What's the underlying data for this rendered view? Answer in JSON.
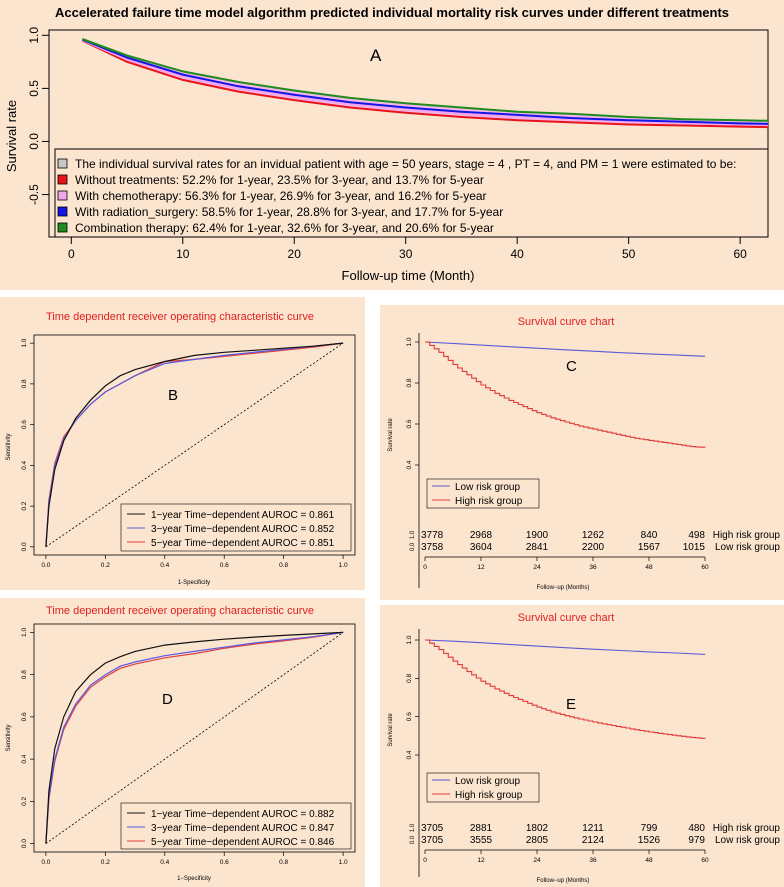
{
  "colors": {
    "background": "#fbe5cf",
    "red": "#e8141c",
    "pink": "#f2a6ee",
    "blue": "#1515e6",
    "green": "#1e8c1e",
    "legend_gray": "#c8c8c8",
    "title_red": "#e02020",
    "roc_black": "#111111",
    "roc_blue": "#5a5ae0",
    "roc_red": "#e04040",
    "low_risk": "#5b5bd6",
    "high_risk": "#e03a3a"
  },
  "chart_data": [
    {
      "id": "A",
      "type": "line",
      "title": "Accelerated failure time model algorithm predicted individual mortality risk curves under different treatments",
      "panel_letter": "A",
      "xlabel": "Follow-up time (Month)",
      "ylabel": "Survival rate",
      "xlim": [
        -2,
        62.5
      ],
      "ylim": [
        -0.9,
        1.05
      ],
      "x_ticks": [
        0,
        10,
        20,
        30,
        40,
        50,
        60
      ],
      "y_ticks": [
        -0.5,
        0.0,
        0.5,
        1.0
      ],
      "y_tick_labels": [
        "-0.5",
        "0.0",
        "0.5",
        "1.0"
      ],
      "legend": {
        "header": "The individual survival rates for an invidual patient with age = 50 years, stage = 4 , PT = 4, and PM = 1 were estimated to be:",
        "entries": [
          "Without treatments:  52.2% for 1-year, 23.5% for 3-year, and 13.7% for 5-year",
          "With chemotherapy:  56.3% for 1-year, 26.9% for 3-year, and 16.2% for 5-year",
          "With radiation_surgery:  58.5% for 1-year, 28.8% for 3-year, and 17.7% for 5-year",
          "Combination therapy:  62.4% for 1-year, 32.6% for 3-year, and 20.6% for 5-year"
        ]
      },
      "series": [
        {
          "name": "Without treatments",
          "color": "#e8141c",
          "x": [
            1,
            5,
            10,
            15,
            20,
            25,
            30,
            35,
            40,
            45,
            50,
            55,
            60,
            62.5
          ],
          "y": [
            0.95,
            0.75,
            0.58,
            0.47,
            0.39,
            0.32,
            0.27,
            0.23,
            0.2,
            0.18,
            0.16,
            0.15,
            0.14,
            0.135
          ]
        },
        {
          "name": "With chemotherapy",
          "color": "#f2a6ee",
          "x": [
            1,
            5,
            10,
            15,
            20,
            25,
            30,
            35,
            40,
            45,
            50,
            55,
            60,
            62.5
          ],
          "y": [
            0.955,
            0.77,
            0.61,
            0.5,
            0.42,
            0.35,
            0.3,
            0.26,
            0.23,
            0.21,
            0.19,
            0.17,
            0.16,
            0.155
          ]
        },
        {
          "name": "With radiation_surgery",
          "color": "#1515e6",
          "x": [
            1,
            5,
            10,
            15,
            20,
            25,
            30,
            35,
            40,
            45,
            50,
            55,
            60,
            62.5
          ],
          "y": [
            0.96,
            0.79,
            0.63,
            0.52,
            0.44,
            0.37,
            0.32,
            0.28,
            0.25,
            0.22,
            0.2,
            0.185,
            0.17,
            0.165
          ]
        },
        {
          "name": "Combination therapy",
          "color": "#1e8c1e",
          "x": [
            1,
            5,
            10,
            15,
            20,
            25,
            30,
            35,
            40,
            45,
            50,
            55,
            60,
            62.5
          ],
          "y": [
            0.965,
            0.81,
            0.66,
            0.56,
            0.48,
            0.41,
            0.36,
            0.32,
            0.28,
            0.26,
            0.23,
            0.21,
            0.2,
            0.195
          ]
        }
      ]
    },
    {
      "id": "B",
      "type": "line",
      "title": "Time dependent receiver operating characteristic curve",
      "panel_letter": "B",
      "xlabel": "1-Specificity",
      "ylabel": "Sensitivity",
      "xlim": [
        -0.04,
        1.04
      ],
      "ylim": [
        -0.04,
        1.04
      ],
      "ticks": [
        0.0,
        0.2,
        0.4,
        0.6,
        0.8,
        1.0
      ],
      "tick_labels": [
        "0.0",
        "0.2",
        "0.4",
        "0.6",
        "0.8",
        "1.0"
      ],
      "legend": [
        "1−year Time−dependent AUROC = 0.861",
        "3−year Time−dependent AUROC = 0.852",
        "5−year Time−dependent AUROC = 0.851"
      ],
      "series": [
        {
          "name": "1-year",
          "color": "#111111",
          "x": [
            0,
            0.01,
            0.03,
            0.06,
            0.1,
            0.15,
            0.2,
            0.25,
            0.3,
            0.4,
            0.5,
            0.6,
            0.7,
            0.8,
            0.9,
            1.0
          ],
          "y": [
            0,
            0.2,
            0.38,
            0.52,
            0.63,
            0.72,
            0.79,
            0.84,
            0.87,
            0.91,
            0.94,
            0.955,
            0.965,
            0.975,
            0.985,
            1.0
          ]
        },
        {
          "name": "3-year",
          "color": "#5a5ae0",
          "x": [
            0,
            0.01,
            0.03,
            0.06,
            0.1,
            0.15,
            0.2,
            0.25,
            0.3,
            0.4,
            0.5,
            0.6,
            0.7,
            0.8,
            0.9,
            1.0
          ],
          "y": [
            0,
            0.22,
            0.4,
            0.53,
            0.62,
            0.7,
            0.76,
            0.8,
            0.84,
            0.9,
            0.92,
            0.94,
            0.955,
            0.97,
            0.985,
            1.0
          ]
        },
        {
          "name": "5-year",
          "color": "#e04040",
          "x": [
            0,
            0.01,
            0.03,
            0.06,
            0.1,
            0.15,
            0.2,
            0.25,
            0.3,
            0.4,
            0.5,
            0.6,
            0.7,
            0.8,
            0.9,
            1.0
          ],
          "y": [
            0,
            0.23,
            0.41,
            0.54,
            0.62,
            0.7,
            0.76,
            0.8,
            0.84,
            0.91,
            0.92,
            0.935,
            0.95,
            0.965,
            0.98,
            1.0
          ]
        }
      ]
    },
    {
      "id": "C",
      "type": "line",
      "title": "Survival curve chart",
      "panel_letter": "C",
      "xlabel": "Follow−up (Months)",
      "ylabel": "Survival rate",
      "xlim": [
        0,
        60
      ],
      "ylim": [
        0.4,
        1.0
      ],
      "x_ticks": [
        0,
        12,
        24,
        36,
        48,
        60
      ],
      "y_ticks": [
        0.4,
        0.6,
        0.8,
        1.0
      ],
      "y_tick_labels": [
        "0.4",
        "0.6",
        "0.8",
        "1.0"
      ],
      "legend": [
        "Low risk group",
        "High risk group"
      ],
      "risk_table": {
        "rows": [
          {
            "label": "High risk group",
            "left_tick": "1.0",
            "values": [
              "3778",
              "2968",
              "1900",
              "1262",
              "840",
              "498"
            ]
          },
          {
            "label": "Low risk group",
            "left_tick": "0.0",
            "values": [
              "3758",
              "3604",
              "2841",
              "2200",
              "1567",
              "1015"
            ]
          }
        ]
      },
      "series": [
        {
          "name": "Low risk group",
          "color": "#5b5bd6",
          "x": [
            0,
            6,
            12,
            18,
            24,
            30,
            36,
            42,
            48,
            54,
            60
          ],
          "y": [
            1.0,
            0.993,
            0.985,
            0.977,
            0.97,
            0.962,
            0.955,
            0.948,
            0.942,
            0.936,
            0.93
          ]
        },
        {
          "name": "High risk group",
          "color": "#e03a3a",
          "x": [
            0,
            3,
            6,
            9,
            12,
            15,
            18,
            21,
            24,
            27,
            30,
            33,
            36,
            39,
            42,
            45,
            48,
            51,
            54,
            57,
            60
          ],
          "y": [
            1.0,
            0.95,
            0.89,
            0.84,
            0.79,
            0.75,
            0.715,
            0.685,
            0.655,
            0.63,
            0.61,
            0.59,
            0.575,
            0.56,
            0.545,
            0.53,
            0.52,
            0.51,
            0.5,
            0.49,
            0.485
          ]
        }
      ]
    },
    {
      "id": "D",
      "type": "line",
      "title": "Time dependent receiver operating characteristic curve",
      "panel_letter": "D",
      "xlabel": "1−Specificity",
      "ylabel": "Sensitivity",
      "xlim": [
        -0.04,
        1.04
      ],
      "ylim": [
        -0.04,
        1.04
      ],
      "ticks": [
        0.0,
        0.2,
        0.4,
        0.6,
        0.8,
        1.0
      ],
      "tick_labels": [
        "0.0",
        "0.2",
        "0.4",
        "0.6",
        "0.8",
        "1.0"
      ],
      "legend": [
        "1−year Time−dependent AUROC = 0.882",
        "3−year Time−dependent AUROC = 0.847",
        "5−year Time−dependent AUROC = 0.846"
      ],
      "series": [
        {
          "name": "1-year",
          "color": "#111111",
          "x": [
            0,
            0.01,
            0.03,
            0.06,
            0.1,
            0.15,
            0.2,
            0.25,
            0.3,
            0.4,
            0.5,
            0.6,
            0.7,
            0.8,
            0.9,
            1.0
          ],
          "y": [
            0,
            0.25,
            0.45,
            0.6,
            0.72,
            0.8,
            0.855,
            0.885,
            0.91,
            0.94,
            0.955,
            0.968,
            0.978,
            0.986,
            0.993,
            1.0
          ]
        },
        {
          "name": "3-year",
          "color": "#5a5ae0",
          "x": [
            0,
            0.01,
            0.03,
            0.06,
            0.1,
            0.15,
            0.2,
            0.25,
            0.3,
            0.4,
            0.5,
            0.6,
            0.7,
            0.8,
            0.9,
            1.0
          ],
          "y": [
            0,
            0.22,
            0.4,
            0.55,
            0.66,
            0.75,
            0.8,
            0.84,
            0.86,
            0.89,
            0.91,
            0.93,
            0.95,
            0.965,
            0.98,
            1.0
          ]
        },
        {
          "name": "5-year",
          "color": "#e04040",
          "x": [
            0,
            0.01,
            0.03,
            0.06,
            0.1,
            0.15,
            0.2,
            0.25,
            0.3,
            0.4,
            0.5,
            0.6,
            0.7,
            0.8,
            0.9,
            1.0
          ],
          "y": [
            0,
            0.21,
            0.39,
            0.54,
            0.65,
            0.74,
            0.79,
            0.83,
            0.85,
            0.88,
            0.9,
            0.925,
            0.945,
            0.96,
            0.978,
            1.0
          ]
        }
      ]
    },
    {
      "id": "E",
      "type": "line",
      "title": "Survival curve chart",
      "panel_letter": "E",
      "xlabel": "Follow−up (Months)",
      "ylabel": "Survival rate",
      "xlim": [
        0,
        60
      ],
      "ylim": [
        0.4,
        1.0
      ],
      "x_ticks": [
        0,
        12,
        24,
        36,
        48,
        60
      ],
      "y_ticks": [
        0.4,
        0.6,
        0.8,
        1.0
      ],
      "y_tick_labels": [
        "0.4",
        "0.6",
        "0.8",
        "1.0"
      ],
      "legend": [
        "Low risk group",
        "High risk group"
      ],
      "risk_table": {
        "rows": [
          {
            "label": "High risk group",
            "left_tick": "1.0",
            "values": [
              "3705",
              "2881",
              "1802",
              "1211",
              "799",
              "480"
            ]
          },
          {
            "label": "Low risk group",
            "left_tick": "0.0",
            "values": [
              "3705",
              "3555",
              "2805",
              "2124",
              "1526",
              "979"
            ]
          }
        ]
      },
      "series": [
        {
          "name": "Low risk group",
          "color": "#5b5bd6",
          "x": [
            0,
            6,
            12,
            18,
            24,
            30,
            36,
            42,
            48,
            54,
            60
          ],
          "y": [
            1.0,
            0.994,
            0.986,
            0.977,
            0.968,
            0.96,
            0.952,
            0.945,
            0.938,
            0.932,
            0.925
          ]
        },
        {
          "name": "High risk group",
          "color": "#e03a3a",
          "x": [
            0,
            3,
            6,
            9,
            12,
            15,
            18,
            21,
            24,
            27,
            30,
            33,
            36,
            39,
            42,
            45,
            48,
            51,
            54,
            57,
            60
          ],
          "y": [
            1.0,
            0.95,
            0.89,
            0.835,
            0.785,
            0.745,
            0.71,
            0.68,
            0.65,
            0.625,
            0.605,
            0.588,
            0.572,
            0.558,
            0.545,
            0.532,
            0.52,
            0.51,
            0.5,
            0.492,
            0.485
          ]
        }
      ]
    }
  ]
}
